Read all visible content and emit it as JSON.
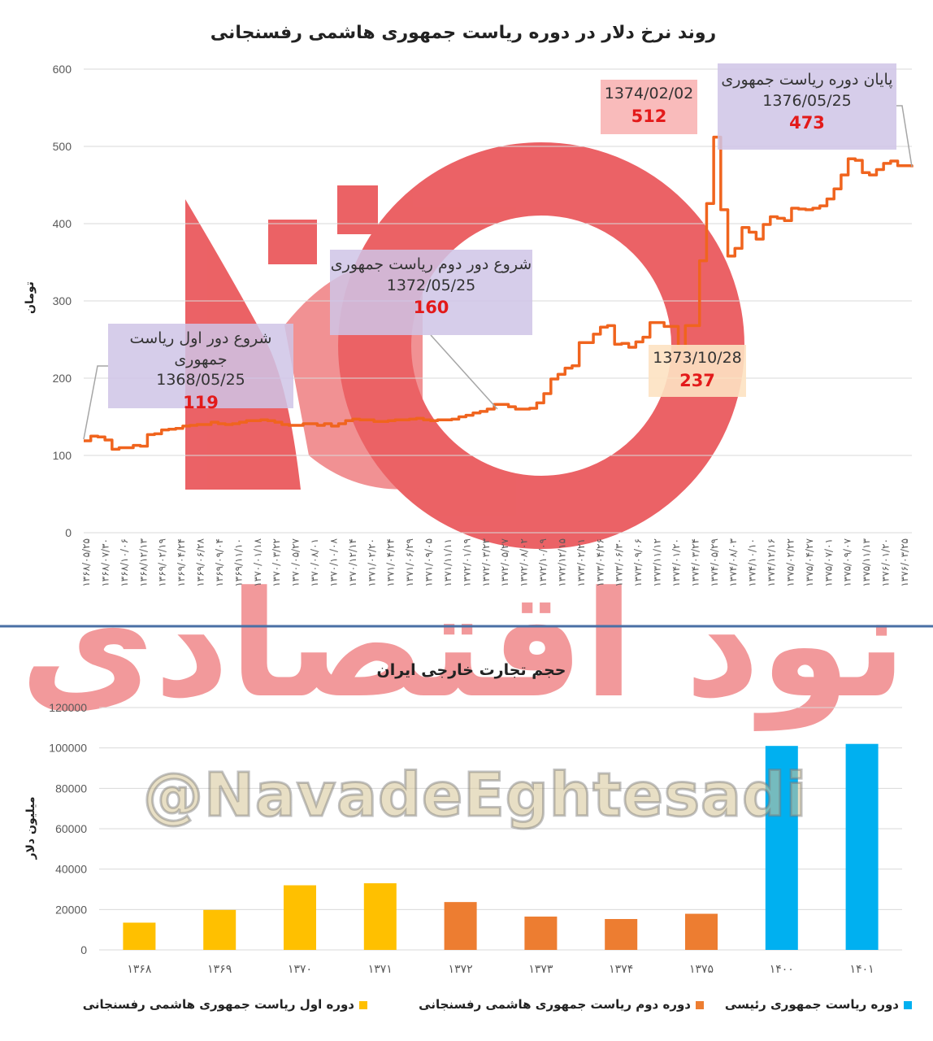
{
  "watermark": {
    "handle": "@NavadeEghtesadi",
    "brand_text": "نود اقتصادی",
    "color": "#e8474b"
  },
  "colors": {
    "line": "#f0641e",
    "yellow": "#ffc000",
    "orange": "#ed7d31",
    "blue": "#00b0f0",
    "divider": "#4a6fa5",
    "purple_box": "#cfc4e6",
    "pink_box": "#f8b4b4",
    "peach_box": "#fde2c2"
  },
  "chart_data": [
    {
      "type": "line",
      "title": "روند نرخ دلار در دوره ریاست جمهوری هاشمی رفسنجانی",
      "ylabel": "تومان",
      "ylim": [
        0,
        600
      ],
      "yticks": [
        0,
        100,
        200,
        300,
        400,
        500,
        600
      ],
      "grid": true,
      "x_tick_labels": [
        "۱۳۶۸/۰۵/۲۵",
        "۱۳۶۸/۰۷/۳۰",
        "۱۳۶۸/۱۰/۰۶",
        "۱۳۶۸/۱۲/۱۳",
        "۱۳۶۹/۰۲/۱۹",
        "۱۳۶۹/۰۴/۲۴",
        "۱۳۶۹/۰۶/۲۸",
        "۱۳۶۹/۰۹/۰۴",
        "۱۳۶۹/۱۱/۱۰",
        "۱۳۷۰/۰۱/۱۸",
        "۱۳۷۰/۰۳/۲۲",
        "۱۳۷۰/۰۵/۲۷",
        "۱۳۷۰/۰۸/۰۱",
        "۱۳۷۰/۱۰/۰۸",
        "۱۳۷۰/۱۲/۱۴",
        "۱۳۷۱/۰۲/۲۰",
        "۱۳۷۱/۰۴/۲۴",
        "۱۳۷۱/۰۶/۲۹",
        "۱۳۷۱/۰۹/۰۵",
        "۱۳۷۱/۱۱/۱۱",
        "۱۳۷۲/۰۱/۱۹",
        "۱۳۷۲/۰۳/۲۳",
        "۱۳۷۲/۰۵/۲۷",
        "۱۳۷۲/۰۸/۰۲",
        "۱۳۷۲/۱۰/۰۹",
        "۱۳۷۲/۱۲/۱۵",
        "۱۳۷۳/۰۲/۲۱",
        "۱۳۷۳/۰۴/۲۶",
        "۱۳۷۳/۰۶/۳۰",
        "۱۳۷۳/۰۹/۰۶",
        "۱۳۷۳/۱۱/۱۲",
        "۱۳۷۴/۰۱/۲۰",
        "۱۳۷۴/۰۳/۲۴",
        "۱۳۷۴/۰۵/۲۹",
        "۱۳۷۴/۰۸/۰۳",
        "۱۳۷۴/۱۰/۱۰",
        "۱۳۷۴/۱۲/۱۶",
        "۱۳۷۵/۰۲/۲۲",
        "۱۳۷۵/۰۴/۲۷",
        "۱۳۷۵/۰۷/۰۱",
        "۱۳۷۵/۰۹/۰۷",
        "۱۳۷۵/۱۱/۱۳",
        "۱۳۷۶/۰۱/۲۰",
        "۱۳۷۶/۰۳/۲۵"
      ],
      "series": [
        {
          "values": [
            119,
            125,
            124,
            120,
            108,
            110,
            110,
            113,
            112,
            127,
            128,
            133,
            134,
            135,
            138,
            139,
            140,
            140,
            143,
            141,
            140,
            141,
            143,
            145,
            145,
            146,
            145,
            143,
            140,
            139,
            139,
            141,
            141,
            139,
            141,
            138,
            141,
            145,
            147,
            146,
            146,
            144,
            144,
            145,
            146,
            146,
            147,
            148,
            146,
            145,
            146,
            146,
            147,
            150,
            152,
            155,
            157,
            160,
            166,
            166,
            163,
            160,
            160,
            161,
            168,
            180,
            199,
            205,
            213,
            216,
            246,
            246,
            257,
            266,
            268,
            244,
            245,
            240,
            247,
            253,
            272,
            272,
            267,
            267,
            237,
            268,
            268,
            352,
            426,
            512,
            418,
            358,
            368,
            395,
            389,
            380,
            399,
            409,
            407,
            404,
            420,
            419,
            418,
            420,
            423,
            432,
            445,
            463,
            484,
            482,
            466,
            463,
            470,
            478,
            481,
            475,
            475,
            473
          ]
        }
      ],
      "annotations": [
        {
          "label": "شروع دور اول ریاست جمهوری",
          "date": "1368/05/25",
          "value": "119"
        },
        {
          "label": "شروع دور دوم ریاست جمهوری",
          "date": "1372/05/25",
          "value": "160"
        },
        {
          "label": "",
          "date": "1374/02/02",
          "value": "512"
        },
        {
          "label": "",
          "date": "1373/10/28",
          "value": "237"
        },
        {
          "label": "پایان دوره ریاست جمهوری",
          "date": "1376/05/25",
          "value": "473"
        }
      ]
    },
    {
      "type": "bar",
      "title": "حجم تجارت خارجی ایران",
      "ylabel": "میلیون دلار",
      "ylim": [
        0,
        120000
      ],
      "yticks": [
        0,
        20000,
        40000,
        60000,
        80000,
        100000,
        120000
      ],
      "grid": true,
      "categories": [
        "۱۳۶۸",
        "۱۳۶۹",
        "۱۳۷۰",
        "۱۳۷۱",
        "۱۳۷۲",
        "۱۳۷۳",
        "۱۳۷۴",
        "۱۳۷۵",
        "۱۴۰۰",
        "۱۴۰۱"
      ],
      "values": [
        13500,
        19800,
        32000,
        33000,
        23700,
        16500,
        15300,
        17900,
        101000,
        102000
      ],
      "groups": [
        "yellow",
        "yellow",
        "yellow",
        "yellow",
        "orange",
        "orange",
        "orange",
        "orange",
        "blue",
        "blue"
      ],
      "legend": [
        {
          "label": "دوره اول ریاست جمهوری هاشمی رفسنجانی",
          "color": "#ffc000"
        },
        {
          "label": "دوره دوم ریاست جمهوری هاشمی رفسنجانی",
          "color": "#ed7d31"
        },
        {
          "label": "دوره ریاست جمهوری رئیسی",
          "color": "#00b0f0"
        }
      ],
      "legend_position": "bottom"
    }
  ]
}
